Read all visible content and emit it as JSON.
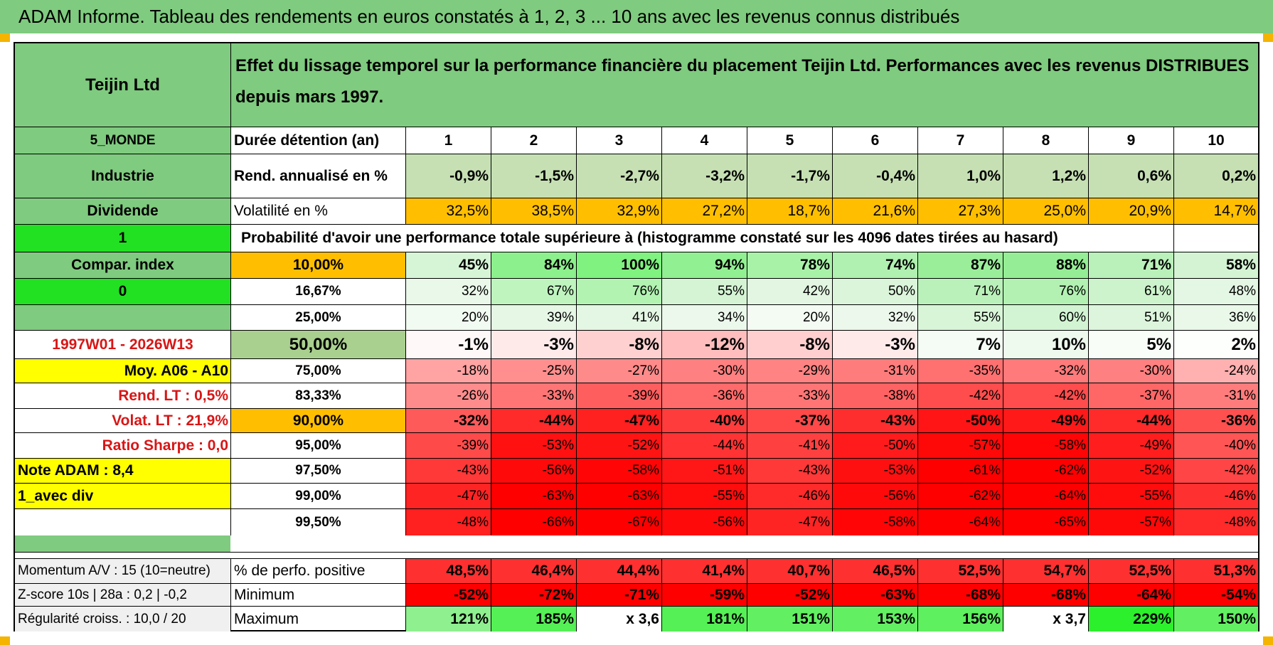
{
  "header": {
    "title": "ADAM Informe. Tableau des rendements en euros constatés à 1, 2, 3 ... 10 ans avec les revenus connus distribués"
  },
  "side": {
    "name": "Teijin Ltd",
    "region": "5_MONDE",
    "sector": "Industrie",
    "dividend_label": "Dividende",
    "dividend_flag": "1",
    "compar_index": "Compar. index",
    "index_flag": "0",
    "period": "1997W01 - 2026W13",
    "moy": "Moy. A06 - A10",
    "rend_lt": "Rend. LT :   0,5%",
    "volat_lt": "Volat. LT :   21,9%",
    "sharpe": "Ratio Sharpe :    0,0",
    "note": "Note ADAM : 8,4",
    "div_mode": "1_avec div",
    "momentum": "Momentum A/V : 15 (10=neutre)",
    "zscore": "Z-score 10s | 28a : 0,2 | -0,2",
    "regularite": "Régularité croiss. : 10,0 / 20"
  },
  "table": {
    "description": "Effet du lissage temporel sur la performance financière du placement Teijin Ltd. Performances avec les revenus DISTRIBUES depuis mars 1997.",
    "duration_label": "Durée détention (an)",
    "years": [
      "1",
      "2",
      "3",
      "4",
      "5",
      "6",
      "7",
      "8",
      "9",
      "10"
    ],
    "rend_label": "Rend. annualisé en %",
    "rend": [
      "-0,9%",
      "-1,5%",
      "-2,7%",
      "-3,2%",
      "-1,7%",
      "-0,4%",
      "1,0%",
      "1,2%",
      "0,6%",
      "0,2%"
    ],
    "vol_label": "Volatilité en %",
    "vol": [
      "32,5%",
      "38,5%",
      "32,9%",
      "27,2%",
      "18,7%",
      "21,6%",
      "27,3%",
      "25,0%",
      "20,9%",
      "14,7%"
    ],
    "prob_title": "Probabilité d'avoir une performance totale supérieure à (histogramme constaté sur les 4096 dates tirées au hasard)",
    "prob_rows": [
      {
        "level": "10,00%",
        "values": [
          "45%",
          "84%",
          "100%",
          "94%",
          "78%",
          "74%",
          "87%",
          "88%",
          "71%",
          "58%"
        ],
        "colors": [
          "#d6f5d6",
          "#8cf08c",
          "#7ff27f",
          "#91f091",
          "#a8f2a8",
          "#b0f0b0",
          "#9aee9a",
          "#95ee95",
          "#baf0ba",
          "#d3f3d3"
        ]
      },
      {
        "level": "16,67%",
        "values": [
          "32%",
          "67%",
          "76%",
          "55%",
          "42%",
          "50%",
          "71%",
          "76%",
          "61%",
          "48%"
        ],
        "colors": [
          "#eaf8ea",
          "#bff4bf",
          "#b2f3b2",
          "#d4f4d4",
          "#e2f6e2",
          "#dbf5db",
          "#baf1ba",
          "#b2f1b2",
          "#ccf3cc",
          "#e4f6e4"
        ]
      },
      {
        "level": "25,00%",
        "values": [
          "20%",
          "39%",
          "41%",
          "34%",
          "20%",
          "32%",
          "55%",
          "60%",
          "51%",
          "36%"
        ],
        "colors": [
          "#f2fbf2",
          "#e6f7e6",
          "#e4f7e4",
          "#ebf8eb",
          "#f3fbf3",
          "#ecf8ec",
          "#d8f5d8",
          "#d2f4d2",
          "#dcf5dc",
          "#e9f8e9"
        ]
      },
      {
        "level": "50,00%",
        "values": [
          "-1%",
          "-3%",
          "-8%",
          "-12%",
          "-8%",
          "-3%",
          "7%",
          "10%",
          "5%",
          "2%"
        ],
        "colors": [
          "#fff8f8",
          "#ffeaea",
          "#ffd0d0",
          "#ffbdbd",
          "#ffcfcf",
          "#ffeaea",
          "#f5fcf5",
          "#eefaee",
          "#f8fdf8",
          "#fcfffc"
        ]
      },
      {
        "level": "75,00%",
        "values": [
          "-18%",
          "-25%",
          "-27%",
          "-30%",
          "-29%",
          "-31%",
          "-35%",
          "-32%",
          "-30%",
          "-24%"
        ],
        "colors": [
          "#ffa3a3",
          "#ff8f8f",
          "#ff8a8a",
          "#ff8080",
          "#ff8383",
          "#ff7c7c",
          "#ff7070",
          "#ff7a7a",
          "#ff8080",
          "#ffb0b0"
        ]
      },
      {
        "level": "83,33%",
        "values": [
          "-26%",
          "-33%",
          "-39%",
          "-36%",
          "-33%",
          "-38%",
          "-42%",
          "-42%",
          "-37%",
          "-31%"
        ],
        "colors": [
          "#ff8c8c",
          "#ff7575",
          "#ff5e5e",
          "#ff6a6a",
          "#ff7575",
          "#ff6262",
          "#ff4c4c",
          "#ff4c4c",
          "#ff6666",
          "#ff7c7c"
        ]
      },
      {
        "level": "90,00%",
        "values": [
          "-32%",
          "-44%",
          "-47%",
          "-40%",
          "-37%",
          "-43%",
          "-50%",
          "-49%",
          "-44%",
          "-36%"
        ],
        "colors": [
          "#ff5a5a",
          "#ff2a2a",
          "#ff2020",
          "#ff3c3c",
          "#ff4848",
          "#ff2e2e",
          "#ff1515",
          "#ff1919",
          "#ff2a2a",
          "#ff5050"
        ]
      },
      {
        "level": "95,00%",
        "values": [
          "-39%",
          "-53%",
          "-52%",
          "-44%",
          "-41%",
          "-50%",
          "-57%",
          "-58%",
          "-49%",
          "-40%"
        ],
        "colors": [
          "#ff4a4a",
          "#ff1111",
          "#ff1414",
          "#ff3333",
          "#ff4040",
          "#ff1b1b",
          "#ff0808",
          "#ff0505",
          "#ff1d1d",
          "#ff5555"
        ]
      },
      {
        "level": "97,50%",
        "values": [
          "-43%",
          "-56%",
          "-58%",
          "-51%",
          "-43%",
          "-53%",
          "-61%",
          "-62%",
          "-52%",
          "-42%"
        ],
        "colors": [
          "#ff3838",
          "#ff0a0a",
          "#ff0505",
          "#ff1717",
          "#ff3838",
          "#ff1010",
          "#ff0000",
          "#ff0000",
          "#ff1414",
          "#ff4545"
        ]
      },
      {
        "level": "99,00%",
        "values": [
          "-47%",
          "-63%",
          "-63%",
          "-55%",
          "-46%",
          "-56%",
          "-62%",
          "-64%",
          "-55%",
          "-46%"
        ],
        "colors": [
          "#ff2424",
          "#ff0000",
          "#ff0000",
          "#ff0c0c",
          "#ff2a2a",
          "#ff0a0a",
          "#ff0000",
          "#ff0000",
          "#ff0c0c",
          "#ff3030"
        ]
      },
      {
        "level": "99,50%",
        "values": [
          "-48%",
          "-66%",
          "-67%",
          "-56%",
          "-47%",
          "-58%",
          "-64%",
          "-65%",
          "-57%",
          "-48%"
        ],
        "colors": [
          "#ff2020",
          "#ff0000",
          "#ff0000",
          "#ff0a0a",
          "#ff2424",
          "#ff0505",
          "#ff0000",
          "#ff0000",
          "#ff0808",
          "#ff2a2a"
        ]
      }
    ],
    "pos_label": "% de perfo. positive",
    "pos": [
      "48,5%",
      "46,4%",
      "44,4%",
      "41,4%",
      "40,7%",
      "46,5%",
      "52,5%",
      "54,7%",
      "52,5%",
      "51,3%"
    ],
    "min_label": "Minimum",
    "min": [
      "-52%",
      "-72%",
      "-71%",
      "-59%",
      "-52%",
      "-63%",
      "-68%",
      "-68%",
      "-64%",
      "-54%"
    ],
    "max_label": "Maximum",
    "max": [
      "121%",
      "185%",
      "x 3,6",
      "181%",
      "151%",
      "153%",
      "156%",
      "x 3,7",
      "229%",
      "150%"
    ],
    "max_colors": [
      "#8ff08f",
      "#55f055",
      "#ffffff",
      "#55f055",
      "#62f062",
      "#62f062",
      "#5ef05e",
      "#ffffff",
      "#2cf02c",
      "#62f062"
    ]
  },
  "colors": {
    "header_green": "#7fcb7f",
    "label_green": "#7fcb7f",
    "bright_green": "#22e022",
    "rend_green": "#c6e0b4",
    "orange": "#ffbf00",
    "median_green": "#a9d08e",
    "yellow": "#ffff00",
    "red_text": "#d81616",
    "pos_red": "#ff3030",
    "min_red": "#ff0000",
    "z_gray": "#f0f0f0"
  }
}
